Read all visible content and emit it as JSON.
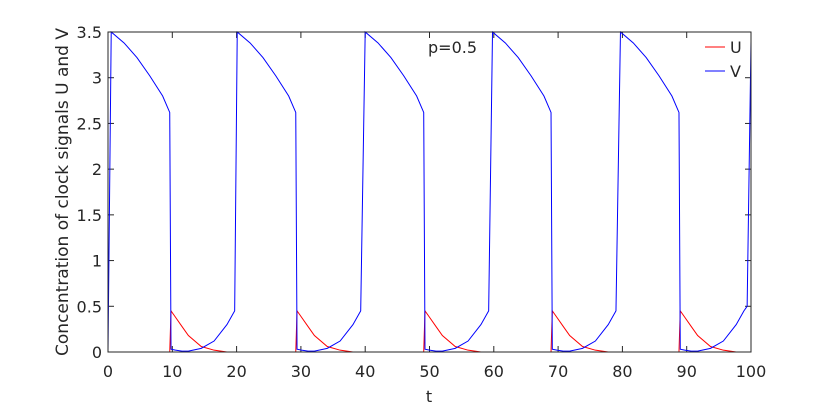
{
  "chart_data": {
    "type": "line",
    "x_label": "t",
    "y_label": "Concentration of clock signals U and V",
    "annotation": "p=0.5",
    "x": [
      0,
      0.5,
      2.5,
      4.5,
      6.5,
      8.5,
      9.6,
      9.8,
      10.5,
      11.5,
      12.5,
      14.5,
      16.5,
      18.5,
      19.7,
      20.1,
      22.1,
      24.1,
      26.1,
      28.1,
      29.2,
      29.4,
      30.1,
      31.1,
      32.1,
      34.1,
      36.1,
      38.1,
      39.3,
      40,
      42,
      44,
      46,
      48,
      49.1,
      49.3,
      50,
      51,
      52,
      54,
      56,
      58,
      59.2,
      59.8,
      61.8,
      63.8,
      65.8,
      67.8,
      68.9,
      69.1,
      69.8,
      70.8,
      71.8,
      73.8,
      75.8,
      77.8,
      79.0,
      79.7,
      81.7,
      83.7,
      85.7,
      87.7,
      88.8,
      89.0,
      89.7,
      90.7,
      91.7,
      93.7,
      95.7,
      97.7,
      98.9,
      99.4,
      100
    ],
    "series": [
      {
        "name": "U",
        "color": "#ff0000",
        "values": [
          0,
          0,
          0,
          0,
          0,
          0,
          0,
          0.45,
          0.38,
          0.28,
          0.18,
          0.06,
          0.02,
          0,
          0,
          0,
          0,
          0,
          0,
          0,
          0,
          0.45,
          0.38,
          0.28,
          0.18,
          0.06,
          0.02,
          0,
          0,
          0,
          0,
          0,
          0,
          0,
          0,
          0.45,
          0.38,
          0.28,
          0.18,
          0.06,
          0.02,
          0,
          0,
          0,
          0,
          0,
          0,
          0,
          0,
          0.45,
          0.38,
          0.28,
          0.18,
          0.06,
          0.02,
          0,
          0,
          0,
          0,
          0,
          0,
          0,
          0,
          0.45,
          0.38,
          0.28,
          0.18,
          0.06,
          0.02,
          0,
          0,
          0,
          0
        ]
      },
      {
        "name": "V",
        "color": "#0000ff",
        "values": [
          0,
          3.5,
          3.38,
          3.22,
          3.02,
          2.8,
          2.62,
          0.03,
          0.02,
          0.01,
          0.01,
          0.04,
          0.12,
          0.3,
          0.45,
          3.5,
          3.38,
          3.22,
          3.02,
          2.8,
          2.62,
          0.03,
          0.02,
          0.01,
          0.01,
          0.04,
          0.12,
          0.3,
          0.45,
          3.5,
          3.38,
          3.22,
          3.02,
          2.8,
          2.62,
          0.03,
          0.02,
          0.01,
          0.01,
          0.04,
          0.12,
          0.3,
          0.45,
          3.5,
          3.38,
          3.22,
          3.02,
          2.8,
          2.62,
          0.03,
          0.02,
          0.01,
          0.01,
          0.04,
          0.12,
          0.3,
          0.45,
          3.5,
          3.38,
          3.22,
          3.02,
          2.8,
          2.62,
          0.03,
          0.02,
          0.01,
          0.01,
          0.04,
          0.12,
          0.3,
          0.45,
          0.5,
          3.4
        ]
      }
    ],
    "xlim": [
      0,
      100
    ],
    "xticks": [
      0,
      10,
      20,
      30,
      40,
      50,
      60,
      70,
      80,
      90,
      100
    ],
    "ylim": [
      0,
      3.5
    ],
    "yticks": [
      0,
      0.5,
      1,
      1.5,
      2,
      2.5,
      3,
      3.5
    ],
    "grid": false,
    "legend": "upper right"
  }
}
